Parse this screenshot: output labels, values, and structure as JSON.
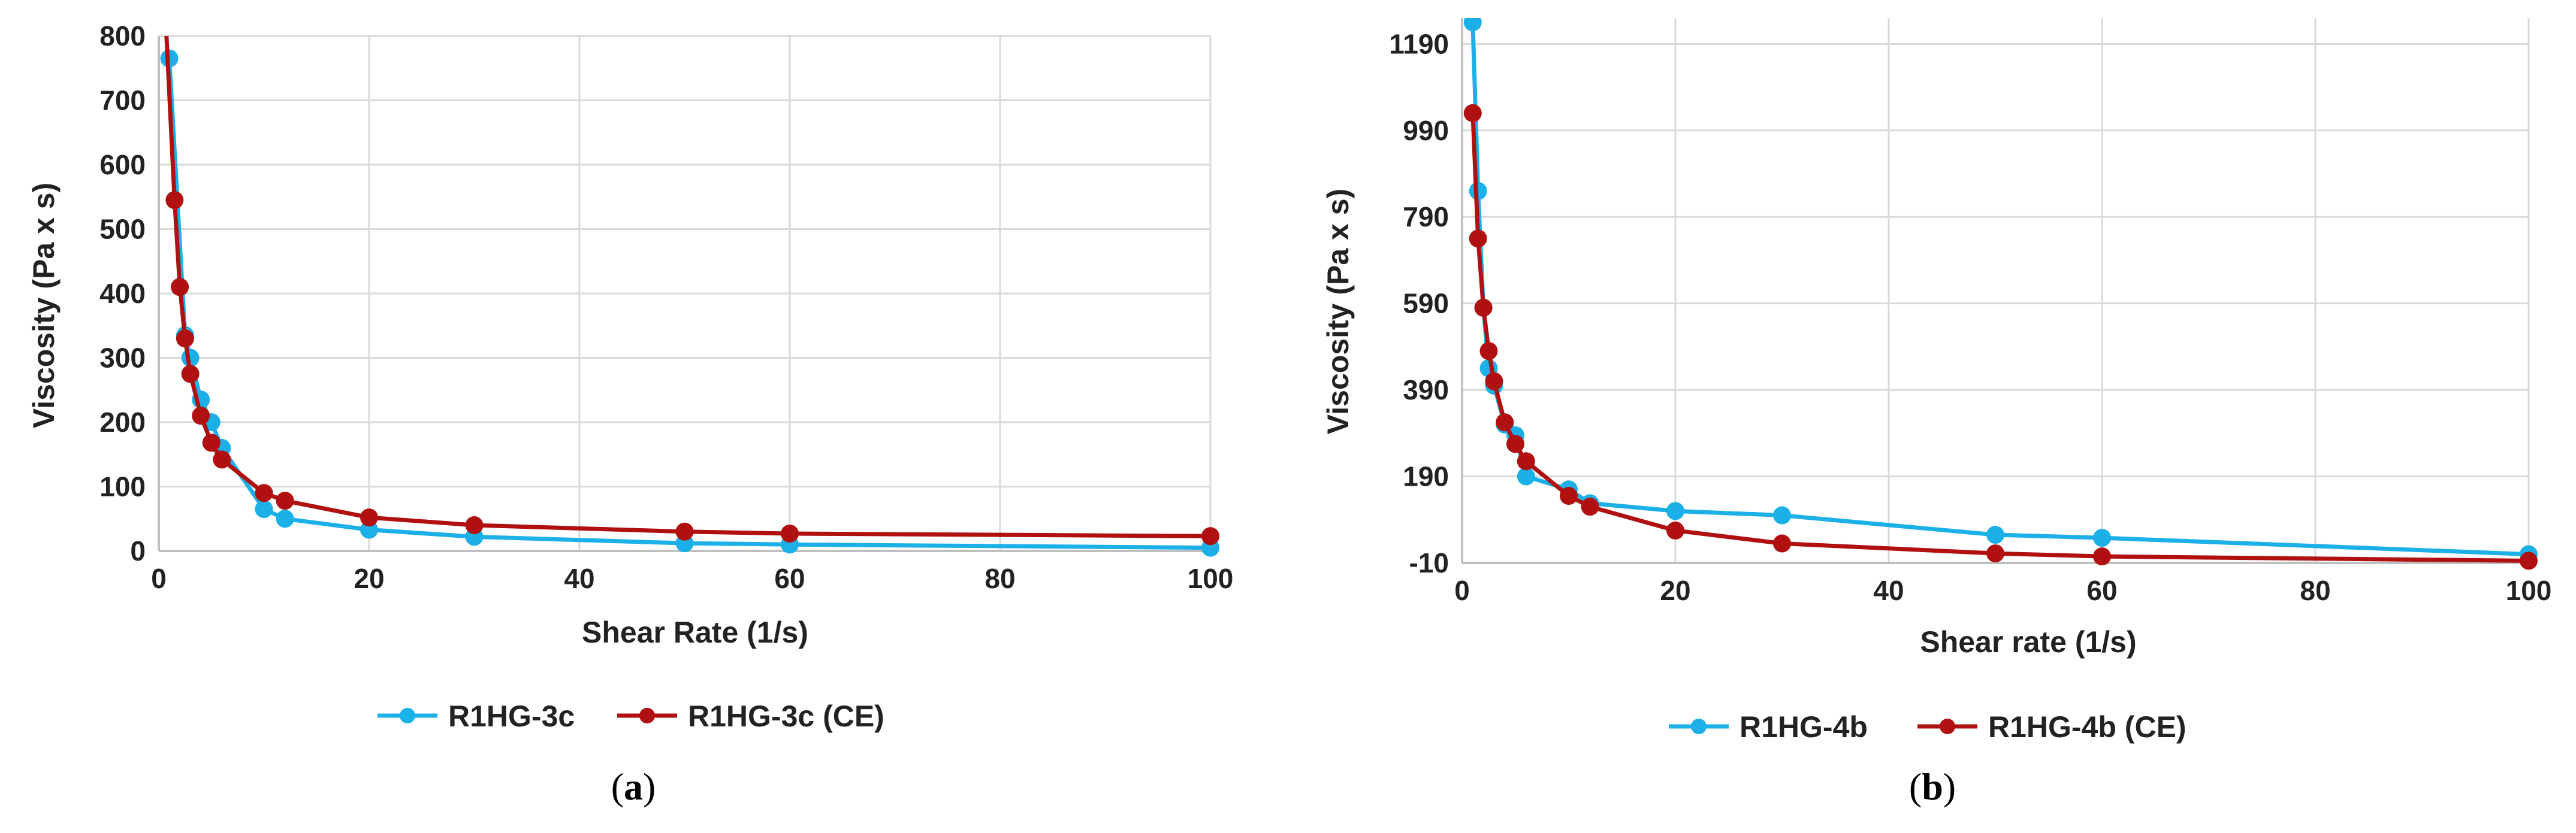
{
  "chart_data": [
    {
      "type": "line",
      "panel_label": "a",
      "title": "",
      "xlabel": "Shear Rate (1/s)",
      "ylabel": "Viscosity (Pa x s)",
      "xlim": [
        0,
        100
      ],
      "ylim": [
        0,
        800
      ],
      "xticks": [
        0,
        20,
        40,
        60,
        80,
        100
      ],
      "yticks": [
        0,
        100,
        200,
        300,
        400,
        500,
        600,
        700,
        800
      ],
      "grid": "vertical and horizontal",
      "legend_position": "bottom",
      "series": [
        {
          "name": "R1HG-3c",
          "color": "#1cb0e8",
          "x": [
            1,
            2.5,
            3,
            4,
            5,
            6,
            10,
            12,
            20,
            30,
            50,
            60,
            100
          ],
          "y": [
            765,
            335,
            300,
            235,
            200,
            160,
            65,
            50,
            33,
            22,
            12,
            10,
            5
          ]
        },
        {
          "name": "R1HG-3c (CE)",
          "color": "#b01010",
          "x": [
            0.7,
            1.5,
            2,
            2.5,
            3,
            4,
            5,
            6,
            10,
            12,
            20,
            30,
            50,
            60,
            100
          ],
          "y": [
            810,
            545,
            410,
            330,
            275,
            210,
            168,
            142,
            90,
            78,
            52,
            40,
            30,
            27,
            23
          ]
        }
      ]
    },
    {
      "type": "line",
      "panel_label": "b",
      "title": "",
      "xlabel": "Shear rate (1/s)",
      "ylabel": "Viscosity (Pa x s)",
      "xlim": [
        0,
        100
      ],
      "ylim": [
        -10,
        1250
      ],
      "xticks": [
        0,
        20,
        40,
        60,
        80,
        100
      ],
      "yticks": [
        -10,
        190,
        390,
        590,
        790,
        990,
        1190
      ],
      "grid": "vertical and horizontal",
      "legend_position": "bottom",
      "series": [
        {
          "name": "R1HG-4b",
          "color": "#1cb0e8",
          "x": [
            1,
            1.5,
            2,
            2.5,
            3,
            4,
            5,
            6,
            10,
            12,
            20,
            30,
            50,
            60,
            100
          ],
          "y": [
            1240,
            850,
            580,
            440,
            400,
            310,
            285,
            190,
            160,
            128,
            110,
            100,
            55,
            48,
            10
          ]
        },
        {
          "name": "R1HG-4b (CE)",
          "color": "#b01010",
          "x": [
            1,
            1.5,
            2,
            2.5,
            3,
            4,
            5,
            6,
            10,
            12,
            20,
            30,
            50,
            60,
            100
          ],
          "y": [
            1030,
            740,
            580,
            480,
            410,
            315,
            265,
            225,
            145,
            120,
            65,
            35,
            12,
            5,
            -5
          ]
        }
      ]
    }
  ]
}
